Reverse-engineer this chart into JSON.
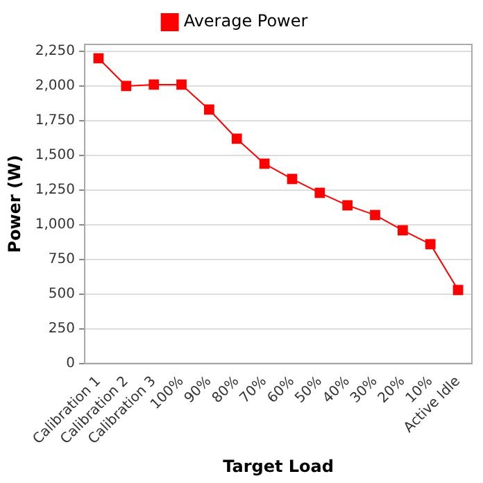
{
  "chart_data": {
    "type": "line",
    "xlabel": "Target Load",
    "ylabel": "Power (W)",
    "categories": [
      "Calibration 1",
      "Calibration 2",
      "Calibration 3",
      "100%",
      "90%",
      "80%",
      "70%",
      "60%",
      "50%",
      "40%",
      "30%",
      "20%",
      "10%",
      "Active Idle"
    ],
    "series": [
      {
        "name": "Average Power",
        "color": "#ff0000",
        "values": [
          2200,
          2000,
          2010,
          2010,
          1830,
          1620,
          1440,
          1330,
          1230,
          1140,
          1070,
          960,
          860,
          530
        ]
      }
    ],
    "ylim": [
      0,
      2300
    ],
    "yticks": [
      0,
      250,
      500,
      750,
      {
        "value": 1000,
        "label": "1,000"
      },
      {
        "value": 1250,
        "label": "1,250"
      },
      {
        "value": 1500,
        "label": "1,500"
      },
      {
        "value": 1750,
        "label": "1,750"
      },
      {
        "value": 2000,
        "label": "2,000"
      },
      {
        "value": 2250,
        "label": "2,250"
      }
    ],
    "grid": "y",
    "legend": "top",
    "marker": "square",
    "line_style": "solid"
  }
}
